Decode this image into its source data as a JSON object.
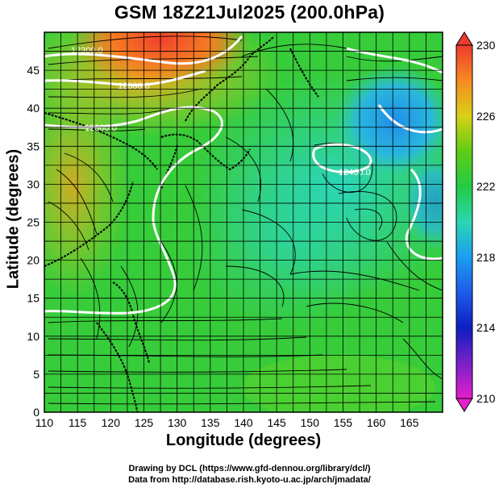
{
  "title": "GSM 18Z21Jul2025 (200.0hPa)",
  "x_axis": {
    "label": "Longitude (degrees)",
    "ticks": [
      "110",
      "115",
      "120",
      "125",
      "130",
      "135",
      "140",
      "145",
      "150",
      "155",
      "160",
      "165"
    ]
  },
  "y_axis": {
    "label": "Latitude  (degrees)",
    "ticks": [
      "0",
      "5",
      "10",
      "15",
      "20",
      "25",
      "30",
      "35",
      "40",
      "45"
    ]
  },
  "colorbar": {
    "labels": [
      "230",
      "226",
      "222",
      "218",
      "214",
      "210"
    ]
  },
  "contour_labels": [
    "12300.0",
    "12300.0",
    "12300.0",
    "12400.0"
  ],
  "credits": {
    "line1": "Drawing by DCL (https://www.gfd-dennou.org/library/dcl/)",
    "line2": "Data from http://database.rish.kyoto-u.ac.jp/arch/jmadata/"
  },
  "chart_data": {
    "type": "heatmap",
    "title": "GSM 18Z21Jul2025 (200.0hPa)",
    "xlabel": "Longitude (degrees)",
    "ylabel": "Latitude  (degrees)",
    "xlim": [
      110,
      170
    ],
    "ylim": [
      0,
      50
    ],
    "colorbar_range": [
      210,
      230
    ],
    "colorbar_ticks": [
      230,
      226,
      222,
      218,
      214,
      210
    ],
    "contour_values": [
      12300.0,
      12400.0
    ]
  }
}
